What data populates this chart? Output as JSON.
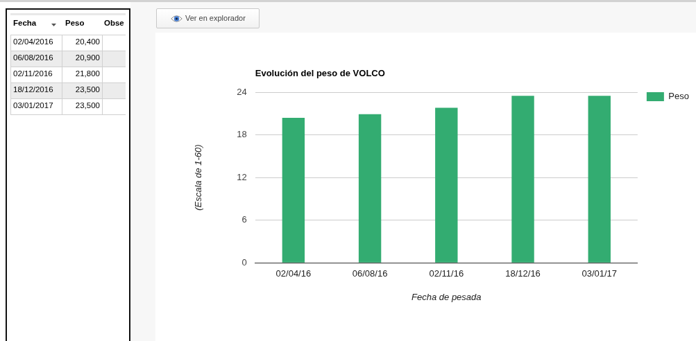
{
  "chart_data": {
    "type": "bar",
    "title": "Evolución del peso de VOLCO",
    "xlabel": "Fecha de pesada",
    "ylabel": "(Escala de 1-60)",
    "categories": [
      "02/04/16",
      "06/08/16",
      "02/11/16",
      "18/12/16",
      "03/01/17"
    ],
    "series": [
      {
        "name": "Peso",
        "color": "#33ac71",
        "values": [
          20.4,
          20.9,
          21.8,
          23.5,
          23.5
        ]
      }
    ],
    "ylim": [
      0,
      24
    ],
    "yticks": [
      0,
      6,
      12,
      18,
      24
    ],
    "grid": "y",
    "legend": "top right",
    "annotations": [
      "Fecha",
      "Peso",
      "Obse",
      "02/04/2016",
      "20,400",
      "06/08/2016",
      "20,900",
      "02/11/2016",
      "21,800",
      "18/12/2016",
      "23,500",
      "03/01/2017",
      "23,500",
      "Ver en explorador"
    ]
  }
}
